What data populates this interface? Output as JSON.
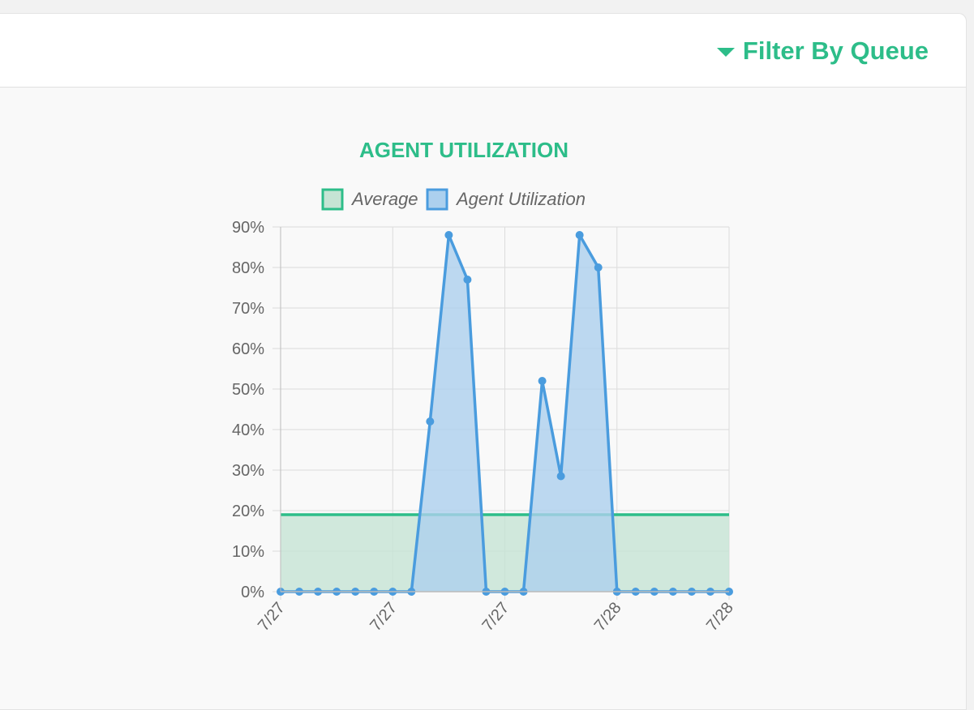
{
  "header": {
    "filter_label": "Filter By Queue"
  },
  "colors": {
    "accent": "#2dbd89",
    "average_line": "#2dbd89",
    "average_fill": "#c6e4d4",
    "util_line": "#4a9cde",
    "util_fill": "#acd0ee"
  },
  "chart_data": {
    "type": "line",
    "title": "AGENT UTILIZATION",
    "legend_position": "top",
    "grid": true,
    "ylim": [
      0,
      90
    ],
    "y_ticks": [
      "0%",
      "10%",
      "20%",
      "30%",
      "40%",
      "50%",
      "60%",
      "70%",
      "80%",
      "90%"
    ],
    "x_tick_labels": [
      "7/27",
      "7/27",
      "7/27",
      "7/28",
      "7/28"
    ],
    "series": [
      {
        "name": "Average",
        "values": [
          19,
          19,
          19,
          19,
          19,
          19,
          19,
          19,
          19,
          19,
          19,
          19,
          19,
          19,
          19,
          19,
          19,
          19,
          19,
          19,
          19,
          19,
          19,
          19,
          19
        ]
      },
      {
        "name": "Agent Utilization",
        "values": [
          0,
          0,
          0,
          0,
          0,
          0,
          0,
          0,
          42,
          88,
          77,
          0,
          0,
          0,
          52,
          28.5,
          88,
          80,
          0,
          0,
          0,
          0,
          0,
          0,
          0
        ]
      }
    ]
  }
}
